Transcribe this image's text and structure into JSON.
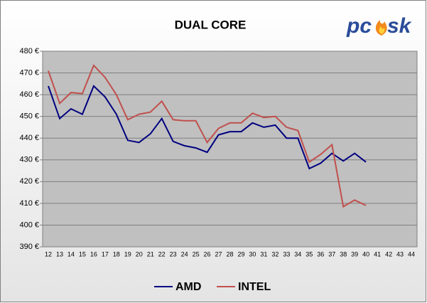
{
  "chart_data": {
    "type": "line",
    "title": "DUAL CORE",
    "logo": [
      "pc",
      "sk"
    ],
    "categories": [
      "12",
      "13",
      "14",
      "15",
      "16",
      "17",
      "18",
      "19",
      "20",
      "21",
      "22",
      "23",
      "24",
      "25",
      "26",
      "27",
      "28",
      "29",
      "30",
      "31",
      "32",
      "33",
      "34",
      "35",
      "36",
      "37",
      "38",
      "39",
      "40",
      "41",
      "42",
      "43",
      "44"
    ],
    "series": [
      {
        "name": "AMD",
        "color": "#000080",
        "values": [
          464,
          449,
          453.5,
          451,
          464,
          459,
          451,
          439,
          438,
          442,
          449,
          438.5,
          436.5,
          435.5,
          433.5,
          441.5,
          443,
          443,
          447,
          445,
          446,
          440,
          440,
          426,
          428.5,
          433,
          429.5,
          433,
          429,
          null,
          null,
          null,
          null
        ]
      },
      {
        "name": "INTEL",
        "color": "#c0504d",
        "values": [
          471,
          456,
          461,
          460.5,
          473.5,
          468,
          460,
          448.5,
          451,
          452,
          457,
          448.5,
          448,
          448,
          438,
          444.5,
          447,
          447,
          451.5,
          449.5,
          450,
          445,
          443.5,
          429,
          432.5,
          437,
          408.5,
          411.5,
          409,
          null,
          null,
          null,
          null
        ]
      }
    ],
    "ylim": [
      390,
      480
    ],
    "yticks": [
      {
        "value": 390,
        "label": "390 €"
      },
      {
        "value": 400,
        "label": "400 €"
      },
      {
        "value": 410,
        "label": "410 €"
      },
      {
        "value": 420,
        "label": "420 €"
      },
      {
        "value": 430,
        "label": "430 €"
      },
      {
        "value": 440,
        "label": "440 €"
      },
      {
        "value": 450,
        "label": "450 €"
      },
      {
        "value": 460,
        "label": "460 €"
      },
      {
        "value": 470,
        "label": "470 €"
      },
      {
        "value": 480,
        "label": "480 €"
      }
    ],
    "grid": true,
    "legend": "bottom"
  }
}
